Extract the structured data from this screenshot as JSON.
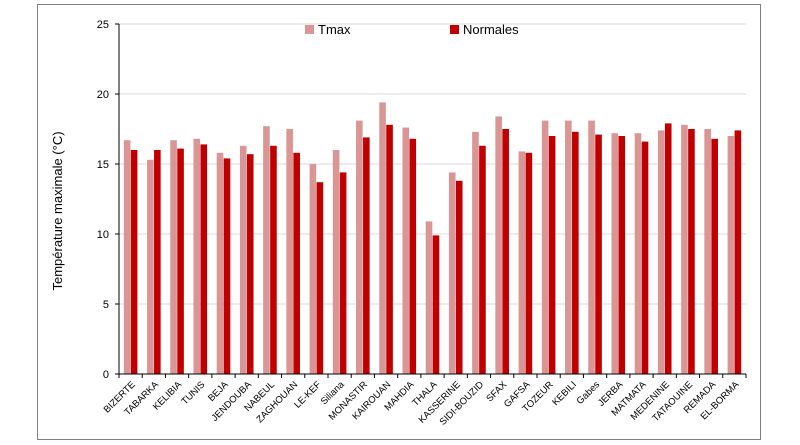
{
  "chart_data": {
    "type": "bar",
    "title": "",
    "xlabel": "",
    "ylabel": "Température maximale (°C)",
    "ylim": [
      0,
      25
    ],
    "yticks": [
      0,
      5,
      10,
      15,
      20,
      25
    ],
    "grid": true,
    "legend_position": "top-center",
    "categories": [
      "BIZERTE",
      "TABARKA",
      "KELIBIA",
      "TUNIS",
      "BEJA",
      "JENDOUBA",
      "NABEUL",
      "ZAGHOUAN",
      "LE-KEF",
      "Siliana",
      "MONASTIR",
      "KAIROUAN",
      "MAHDIA",
      "THALA",
      "KASSERINE",
      "SIDI-BOUZID",
      "SFAX",
      "GAFSA",
      "TOZEUR",
      "KEBILI",
      "Gabes",
      "JERBA",
      "MATMATA",
      "MEDENINE",
      "TATAOUINE",
      "REMADA",
      "EL-BORMA"
    ],
    "series": [
      {
        "name": "Tmax",
        "color": "#d99694",
        "values": [
          16.7,
          15.3,
          16.7,
          16.8,
          15.8,
          16.3,
          17.7,
          17.5,
          15.0,
          16.0,
          18.1,
          19.4,
          17.6,
          10.9,
          14.4,
          17.3,
          18.4,
          15.9,
          18.1,
          18.1,
          18.1,
          17.2,
          17.2,
          17.4,
          17.8,
          17.5,
          17.0
        ]
      },
      {
        "name": "Normales",
        "color": "#c00000",
        "values": [
          16.0,
          16.0,
          16.1,
          16.4,
          15.4,
          15.7,
          16.3,
          15.8,
          13.7,
          14.4,
          16.9,
          17.8,
          16.8,
          9.9,
          13.8,
          16.3,
          17.5,
          15.8,
          17.0,
          17.3,
          17.1,
          17.0,
          16.6,
          17.9,
          17.5,
          16.8,
          17.4
        ]
      }
    ]
  }
}
